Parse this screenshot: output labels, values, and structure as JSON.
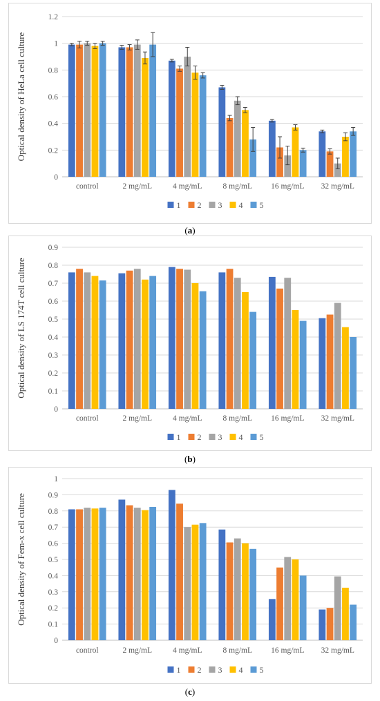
{
  "colors": {
    "1": "#4472C4",
    "2": "#ED7D31",
    "3": "#A5A5A5",
    "4": "#FFC000",
    "5": "#5B9BD5"
  },
  "labels": {
    "a": "a",
    "b": "b",
    "c": "c"
  },
  "chart_data": [
    {
      "type": "bar",
      "ylabel": "Optical density of HeLa cell culture",
      "xlabel": "",
      "categories": [
        "control",
        "2 mg/mL",
        "4 mg/mL",
        "8 mg/mL",
        "16 mg/mL",
        "32 mg/mL"
      ],
      "ylim": [
        0,
        1.2
      ],
      "yticks": [
        "0",
        "0.2",
        "0.4",
        "0.6",
        "0.8",
        "1",
        "1.2"
      ],
      "grid": true,
      "legend": "bottom",
      "error_bars": true,
      "series": [
        {
          "name": "1",
          "values": [
            0.99,
            0.97,
            0.87,
            0.67,
            0.42,
            0.34
          ],
          "errors": [
            0.01,
            0.015,
            0.01,
            0.015,
            0.01,
            0.01
          ]
        },
        {
          "name": "2",
          "values": [
            0.99,
            0.97,
            0.81,
            0.44,
            0.22,
            0.19
          ],
          "errors": [
            0.025,
            0.02,
            0.02,
            0.02,
            0.08,
            0.02
          ]
        },
        {
          "name": "3",
          "values": [
            1.0,
            0.99,
            0.9,
            0.57,
            0.16,
            0.1
          ],
          "errors": [
            0.015,
            0.035,
            0.07,
            0.03,
            0.07,
            0.04
          ]
        },
        {
          "name": "4",
          "values": [
            0.98,
            0.89,
            0.78,
            0.5,
            0.37,
            0.3
          ],
          "errors": [
            0.02,
            0.045,
            0.05,
            0.02,
            0.02,
            0.03
          ]
        },
        {
          "name": "5",
          "values": [
            1.0,
            0.99,
            0.76,
            0.28,
            0.2,
            0.34
          ],
          "errors": [
            0.015,
            0.09,
            0.02,
            0.09,
            0.015,
            0.03
          ]
        }
      ]
    },
    {
      "type": "bar",
      "ylabel": "Optical density of LS 174T cell culture",
      "xlabel": "",
      "categories": [
        "control",
        "2 mg/mL",
        "4 mg/mL",
        "8 mg/mL",
        "16 mg/mL",
        "32 mg/mL"
      ],
      "ylim": [
        0,
        0.9
      ],
      "yticks": [
        "0",
        "0.1",
        "0.2",
        "0.3",
        "0.4",
        "0.5",
        "0.6",
        "0.7",
        "0.8",
        "0.9"
      ],
      "grid": true,
      "legend": "bottom",
      "error_bars": false,
      "series": [
        {
          "name": "1",
          "values": [
            0.76,
            0.755,
            0.79,
            0.76,
            0.735,
            0.505
          ]
        },
        {
          "name": "2",
          "values": [
            0.78,
            0.77,
            0.78,
            0.78,
            0.67,
            0.525
          ]
        },
        {
          "name": "3",
          "values": [
            0.76,
            0.78,
            0.775,
            0.73,
            0.73,
            0.59
          ]
        },
        {
          "name": "4",
          "values": [
            0.74,
            0.72,
            0.7,
            0.65,
            0.55,
            0.455
          ]
        },
        {
          "name": "5",
          "values": [
            0.715,
            0.74,
            0.655,
            0.54,
            0.49,
            0.4
          ]
        }
      ]
    },
    {
      "type": "bar",
      "ylabel": "Optical density of Fem-x cell culture",
      "xlabel": "",
      "categories": [
        "control",
        "2 mg/mL",
        "4 mg/mL",
        "8 mg/mL",
        "16 mg/mL",
        "32 mg/mL"
      ],
      "ylim": [
        0,
        1
      ],
      "yticks": [
        "0",
        "0.1",
        "0.2",
        "0.3",
        "0.4",
        "0.5",
        "0.6",
        "0.7",
        "0.8",
        "0.9",
        "1"
      ],
      "grid": true,
      "legend": "bottom",
      "error_bars": false,
      "series": [
        {
          "name": "1",
          "values": [
            0.81,
            0.87,
            0.93,
            0.685,
            0.255,
            0.19
          ]
        },
        {
          "name": "2",
          "values": [
            0.81,
            0.835,
            0.845,
            0.605,
            0.45,
            0.2
          ]
        },
        {
          "name": "3",
          "values": [
            0.82,
            0.82,
            0.7,
            0.63,
            0.515,
            0.395
          ]
        },
        {
          "name": "4",
          "values": [
            0.815,
            0.805,
            0.715,
            0.6,
            0.5,
            0.325
          ]
        },
        {
          "name": "5",
          "values": [
            0.82,
            0.825,
            0.725,
            0.565,
            0.4,
            0.22
          ]
        }
      ]
    }
  ]
}
